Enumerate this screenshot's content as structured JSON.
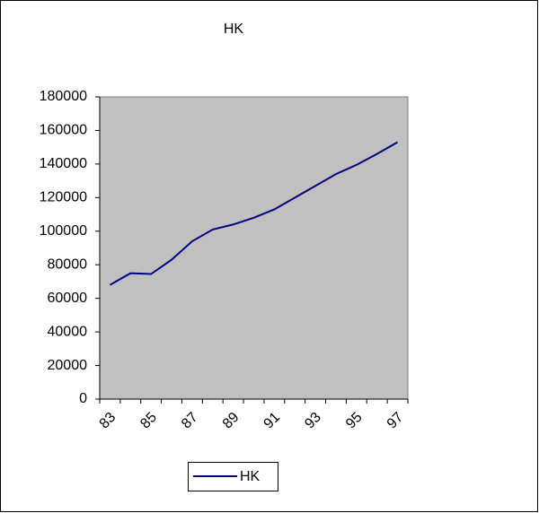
{
  "chart_data": {
    "type": "line",
    "title": "HK",
    "categories": [
      "83",
      null,
      "85",
      null,
      "87",
      null,
      "89",
      null,
      "91",
      null,
      "93",
      null,
      "95",
      null,
      "97"
    ],
    "series": [
      {
        "name": "HK",
        "color": "#000080",
        "values": [
          68000,
          75000,
          74500,
          83000,
          94000,
          101000,
          104000,
          108000,
          113000,
          120000,
          127000,
          134000,
          139500,
          146000,
          153000
        ]
      }
    ],
    "ylim": [
      0,
      180000
    ],
    "yticks": [
      0,
      20000,
      40000,
      60000,
      80000,
      100000,
      120000,
      140000,
      160000,
      180000
    ],
    "grid": false,
    "plot_background": "#c0c0c0",
    "legend": "bottom"
  }
}
